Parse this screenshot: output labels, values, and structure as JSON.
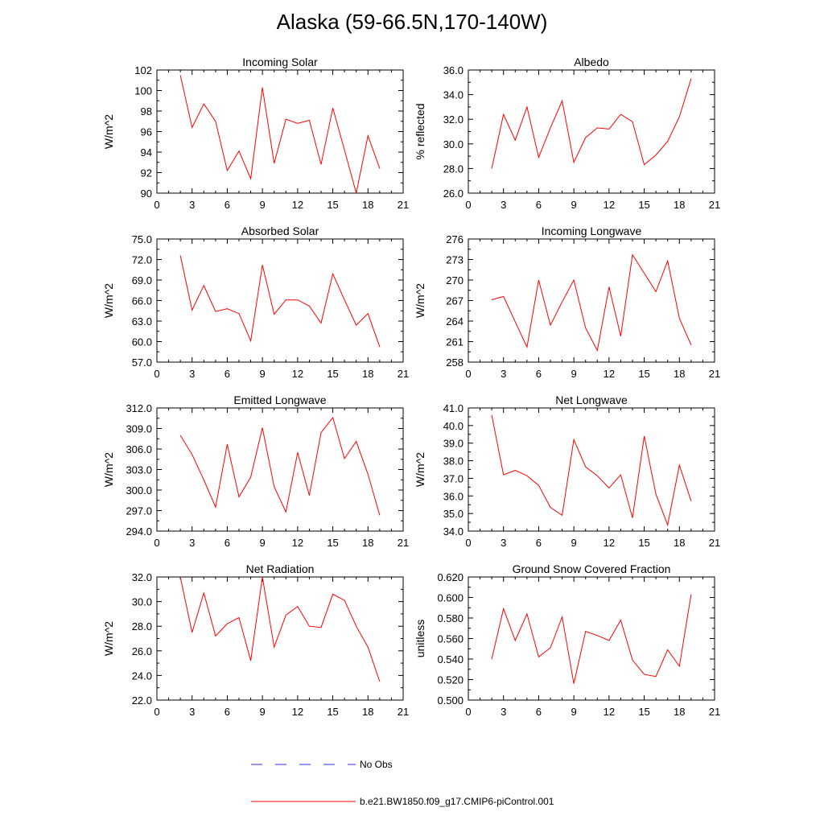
{
  "page": {
    "title": "Alaska (59-66.5N,170-140W)"
  },
  "legend": {
    "items": [
      {
        "label": "No Obs",
        "color": "#2d2df5",
        "dash": true
      },
      {
        "label": "b.e21.BW1850.f09_g17.CMIP6-piControl.001",
        "color": "#ff0000",
        "dash": false
      }
    ]
  },
  "chart_data": [
    {
      "type": "line",
      "title": "Incoming Solar",
      "ylabel": "W/m^2",
      "xlim": [
        0,
        21
      ],
      "xticks": [
        0,
        3,
        6,
        9,
        12,
        15,
        18,
        21
      ],
      "ylim": [
        90,
        102
      ],
      "yticks": [
        90,
        92,
        94,
        96,
        98,
        100,
        102
      ],
      "yfmt": 0,
      "x": [
        2,
        3,
        4,
        5,
        6,
        7,
        8,
        9,
        10,
        11,
        12,
        13,
        14,
        15,
        16,
        17,
        18,
        19
      ],
      "series": [
        {
          "color": "#ff0000",
          "values": [
            101.5,
            96.4,
            98.7,
            97.0,
            92.2,
            94.1,
            91.4,
            100.3,
            92.9,
            97.2,
            96.8,
            97.1,
            92.8,
            98.3,
            94.2,
            90.0,
            95.6,
            92.4
          ]
        }
      ]
    },
    {
      "type": "line",
      "title": "Albedo",
      "ylabel": "% reflected",
      "xlim": [
        0,
        21
      ],
      "xticks": [
        0,
        3,
        6,
        9,
        12,
        15,
        18,
        21
      ],
      "ylim": [
        26,
        36
      ],
      "yticks": [
        26,
        28,
        30,
        32,
        34,
        36
      ],
      "yfmt": 1,
      "x": [
        2,
        3,
        4,
        5,
        6,
        7,
        8,
        9,
        10,
        11,
        12,
        13,
        14,
        15,
        16,
        17,
        18,
        19
      ],
      "series": [
        {
          "color": "#ff0000",
          "values": [
            28.0,
            32.4,
            30.3,
            33.0,
            28.9,
            31.3,
            33.5,
            28.5,
            30.5,
            31.3,
            31.2,
            32.4,
            31.8,
            28.3,
            29.1,
            30.2,
            32.2,
            35.3
          ]
        }
      ]
    },
    {
      "type": "line",
      "title": "Absorbed Solar",
      "ylabel": "W/m^2",
      "xlim": [
        0,
        21
      ],
      "xticks": [
        0,
        3,
        6,
        9,
        12,
        15,
        18,
        21
      ],
      "ylim": [
        57,
        75
      ],
      "yticks": [
        57,
        60,
        63,
        66,
        69,
        72,
        75
      ],
      "yfmt": 1,
      "x": [
        2,
        3,
        4,
        5,
        6,
        7,
        8,
        9,
        10,
        11,
        12,
        13,
        14,
        15,
        16,
        17,
        18,
        19
      ],
      "series": [
        {
          "color": "#ff0000",
          "values": [
            72.6,
            64.6,
            68.2,
            64.4,
            64.8,
            64.1,
            60.1,
            71.2,
            64.0,
            66.1,
            66.1,
            65.2,
            62.7,
            69.9,
            66.1,
            62.4,
            64.1,
            59.2
          ]
        }
      ]
    },
    {
      "type": "line",
      "title": "Incoming Longwave",
      "ylabel": "W/m^2",
      "xlim": [
        0,
        21
      ],
      "xticks": [
        0,
        3,
        6,
        9,
        12,
        15,
        18,
        21
      ],
      "ylim": [
        258,
        276
      ],
      "yticks": [
        258,
        261,
        264,
        267,
        270,
        273,
        276
      ],
      "yfmt": 0,
      "x": [
        2,
        3,
        4,
        5,
        6,
        7,
        8,
        9,
        10,
        11,
        12,
        13,
        14,
        15,
        16,
        17,
        18,
        19
      ],
      "series": [
        {
          "color": "#ff0000",
          "values": [
            267.1,
            267.6,
            263.9,
            260.2,
            270.0,
            263.4,
            266.8,
            270.0,
            263.0,
            259.7,
            269.0,
            261.8,
            273.7,
            271.0,
            268.3,
            272.8,
            264.4,
            260.5
          ]
        }
      ]
    },
    {
      "type": "line",
      "title": "Emitted Longwave",
      "ylabel": "W/m^2",
      "xlim": [
        0,
        21
      ],
      "xticks": [
        0,
        3,
        6,
        9,
        12,
        15,
        18,
        21
      ],
      "ylim": [
        294,
        312
      ],
      "yticks": [
        294,
        297,
        300,
        303,
        306,
        309,
        312
      ],
      "yfmt": 1,
      "x": [
        2,
        3,
        4,
        5,
        6,
        7,
        8,
        9,
        10,
        11,
        12,
        13,
        14,
        15,
        16,
        17,
        18,
        19
      ],
      "series": [
        {
          "color": "#ff0000",
          "values": [
            308.0,
            305.2,
            301.5,
            297.5,
            306.7,
            299.0,
            301.9,
            309.1,
            300.5,
            296.8,
            305.5,
            299.2,
            308.4,
            310.6,
            304.6,
            307.1,
            302.3,
            296.3
          ]
        }
      ]
    },
    {
      "type": "line",
      "title": "Net Longwave",
      "ylabel": "W/m^2",
      "xlim": [
        0,
        21
      ],
      "xticks": [
        0,
        3,
        6,
        9,
        12,
        15,
        18,
        21
      ],
      "ylim": [
        34,
        41
      ],
      "yticks": [
        34,
        35,
        36,
        37,
        38,
        39,
        40,
        41
      ],
      "yfmt": 1,
      "x": [
        2,
        3,
        4,
        5,
        6,
        7,
        8,
        9,
        10,
        11,
        12,
        13,
        14,
        15,
        16,
        17,
        18,
        19
      ],
      "series": [
        {
          "color": "#ff0000",
          "values": [
            40.6,
            37.2,
            37.45,
            37.15,
            36.6,
            35.35,
            34.9,
            39.2,
            37.65,
            37.15,
            36.45,
            37.2,
            34.75,
            39.4,
            36.1,
            34.35,
            37.75,
            35.7
          ]
        }
      ]
    },
    {
      "type": "line",
      "title": "Net Radiation",
      "ylabel": "W/m^2",
      "xlim": [
        0,
        21
      ],
      "xticks": [
        0,
        3,
        6,
        9,
        12,
        15,
        18,
        21
      ],
      "ylim": [
        22,
        32
      ],
      "yticks": [
        22,
        24,
        26,
        28,
        30,
        32
      ],
      "yfmt": 1,
      "x": [
        2,
        3,
        4,
        5,
        6,
        7,
        8,
        9,
        10,
        11,
        12,
        13,
        14,
        15,
        16,
        17,
        18,
        19
      ],
      "series": [
        {
          "color": "#ff0000",
          "values": [
            32.0,
            27.5,
            30.7,
            27.2,
            28.2,
            28.7,
            25.2,
            32.0,
            26.3,
            28.9,
            29.6,
            28.0,
            27.9,
            30.6,
            30.1,
            28.0,
            26.3,
            23.5
          ]
        }
      ]
    },
    {
      "type": "line",
      "title": "Ground Snow Covered Fraction",
      "ylabel": "unitless",
      "xlim": [
        0,
        21
      ],
      "xticks": [
        0,
        3,
        6,
        9,
        12,
        15,
        18,
        21
      ],
      "ylim": [
        0.5,
        0.62
      ],
      "yticks": [
        0.5,
        0.52,
        0.54,
        0.56,
        0.58,
        0.6,
        0.62
      ],
      "yfmt": 3,
      "x": [
        2,
        3,
        4,
        5,
        6,
        7,
        8,
        9,
        10,
        11,
        12,
        13,
        14,
        15,
        16,
        17,
        18,
        19
      ],
      "series": [
        {
          "color": "#ff0000",
          "values": [
            0.54,
            0.589,
            0.558,
            0.584,
            0.542,
            0.551,
            0.581,
            0.516,
            0.567,
            0.563,
            0.558,
            0.578,
            0.539,
            0.525,
            0.523,
            0.549,
            0.533,
            0.603
          ]
        }
      ]
    }
  ]
}
